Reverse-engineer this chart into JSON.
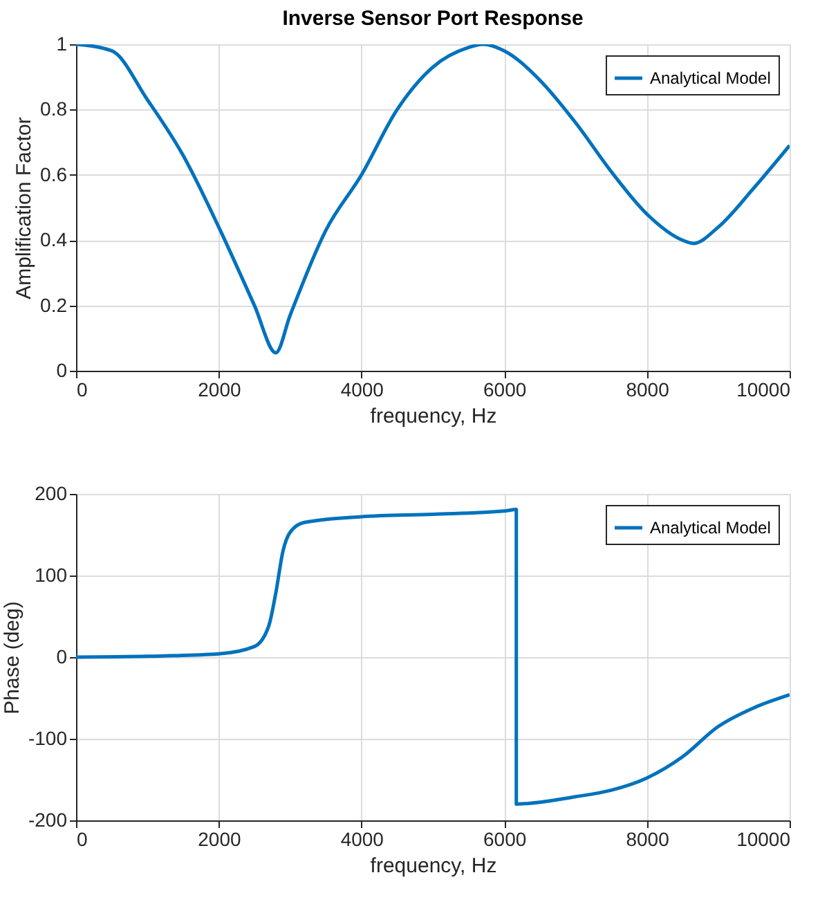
{
  "chart_data": [
    {
      "type": "line",
      "title": "Inverse Sensor Port Response",
      "xlabel": "frequency, Hz",
      "ylabel": "Amplification Factor",
      "x": [
        0,
        500,
        1000,
        1500,
        2000,
        2500,
        2800,
        3000,
        3500,
        4000,
        4500,
        5000,
        5500,
        5700,
        6000,
        6500,
        7000,
        7500,
        8000,
        8500,
        8650,
        9000,
        9500,
        10000
      ],
      "series": [
        {
          "name": "Analytical Model",
          "color": "#0072bd",
          "values": [
            1.0,
            0.98,
            0.83,
            0.66,
            0.44,
            0.2,
            0.055,
            0.17,
            0.43,
            0.6,
            0.8,
            0.93,
            0.99,
            1.0,
            0.98,
            0.89,
            0.76,
            0.61,
            0.48,
            0.4,
            0.39,
            0.44,
            0.56,
            0.69
          ]
        }
      ],
      "xlim": [
        0,
        10000
      ],
      "xticks": [
        0,
        2000,
        4000,
        6000,
        8000,
        10000
      ],
      "ylim": [
        0,
        1
      ],
      "yticks": [
        0,
        0.2,
        0.4,
        0.6,
        0.8,
        1
      ],
      "grid": true,
      "legend": "top right"
    },
    {
      "type": "line",
      "xlabel": "frequency, Hz",
      "ylabel": "Phase (deg)",
      "x": [
        0,
        1000,
        2000,
        2500,
        2700,
        2800,
        2900,
        3000,
        3200,
        4000,
        5000,
        6000,
        6170,
        6170,
        7000,
        7500,
        8000,
        8500,
        9000,
        9500,
        10000
      ],
      "series": [
        {
          "name": "Analytical Model",
          "color": "#0072bd",
          "values": [
            0,
            1,
            4,
            13,
            38,
            79,
            130,
            153,
            165,
            172,
            175,
            179,
            181,
            -180,
            -171,
            -163,
            -148,
            -122,
            -85,
            -62,
            -46
          ]
        }
      ],
      "xlim": [
        0,
        10000
      ],
      "xticks": [
        0,
        2000,
        4000,
        6000,
        8000,
        10000
      ],
      "ylim": [
        -200,
        200
      ],
      "yticks": [
        -200,
        -100,
        0,
        100,
        200
      ],
      "grid": true,
      "legend": "top right"
    }
  ]
}
